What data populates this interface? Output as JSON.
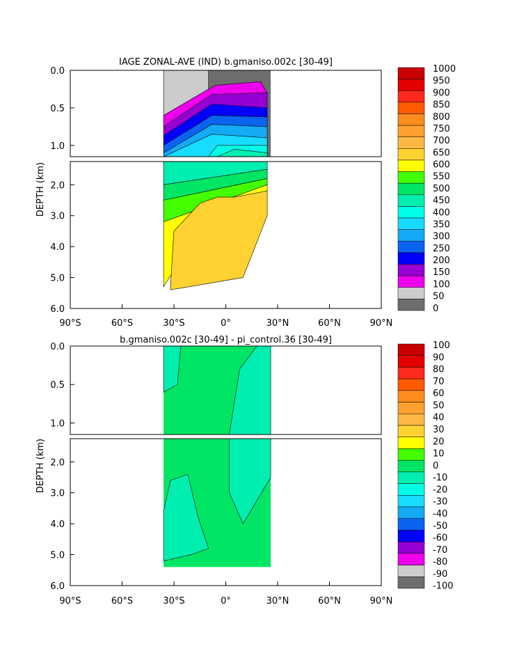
{
  "chart_data": [
    {
      "type": "heatmap",
      "title": "IAGE ZONAL-AVE (IND) b.gmaniso.002c [30-49]",
      "xlabel": "",
      "ylabel": "DEPTH (km)",
      "x_ticks": [
        "90°S",
        "60°S",
        "30°S",
        "0°",
        "30°N",
        "60°N",
        "90°N"
      ],
      "y_ticks_upper": [
        "0.0",
        "0.5",
        "1.0"
      ],
      "y_ticks_lower": [
        "2.0",
        "3.0",
        "4.0",
        "5.0",
        "6.0"
      ],
      "xlim": [
        -90,
        90
      ],
      "ylim": [
        6.0,
        0.0
      ],
      "colorbar": {
        "labels": [
          "1000",
          "950",
          "900",
          "850",
          "800",
          "750",
          "700",
          "650",
          "600",
          "550",
          "500",
          "450",
          "400",
          "350",
          "300",
          "250",
          "200",
          "150",
          "100",
          "50",
          "0"
        ],
        "colors": [
          "#c80000",
          "#e20000",
          "#ff2a1e",
          "#ff5a00",
          "#ff8c1e",
          "#ffa030",
          "#ffb846",
          "#ffd232",
          "#ffff00",
          "#44ff00",
          "#00e664",
          "#00eeb0",
          "#00ffe6",
          "#18dcff",
          "#14aaf5",
          "#0a64f0",
          "#0000ff",
          "#9600d2",
          "#ee00ee",
          "#cccccc",
          "#6e6e6e"
        ]
      }
    },
    {
      "type": "heatmap",
      "title": "b.gmaniso.002c [30-49] - pi_control.36 [30-49]",
      "xlabel": "",
      "ylabel": "DEPTH (km)",
      "x_ticks": [
        "90°S",
        "60°S",
        "30°S",
        "0°",
        "30°N",
        "60°N",
        "90°N"
      ],
      "y_ticks_upper": [
        "0.0",
        "0.5",
        "1.0"
      ],
      "y_ticks_lower": [
        "2.0",
        "3.0",
        "4.0",
        "5.0",
        "6.0"
      ],
      "xlim": [
        -90,
        90
      ],
      "ylim": [
        6.0,
        0.0
      ],
      "colorbar": {
        "labels": [
          "100",
          "90",
          "80",
          "70",
          "60",
          "50",
          "40",
          "30",
          "20",
          "10",
          "0",
          "-10",
          "-20",
          "-30",
          "-40",
          "-50",
          "-60",
          "-70",
          "-80",
          "-90",
          "-100"
        ],
        "colors": [
          "#c80000",
          "#e20000",
          "#ff2a1e",
          "#ff5a00",
          "#ff8c1e",
          "#ffa030",
          "#ffb846",
          "#ffd232",
          "#ffff00",
          "#44ff00",
          "#00e664",
          "#00eeb0",
          "#00ffe6",
          "#18dcff",
          "#14aaf5",
          "#0a64f0",
          "#0000ff",
          "#9600d2",
          "#ee00ee",
          "#cccccc",
          "#6e6e6e"
        ]
      }
    }
  ]
}
